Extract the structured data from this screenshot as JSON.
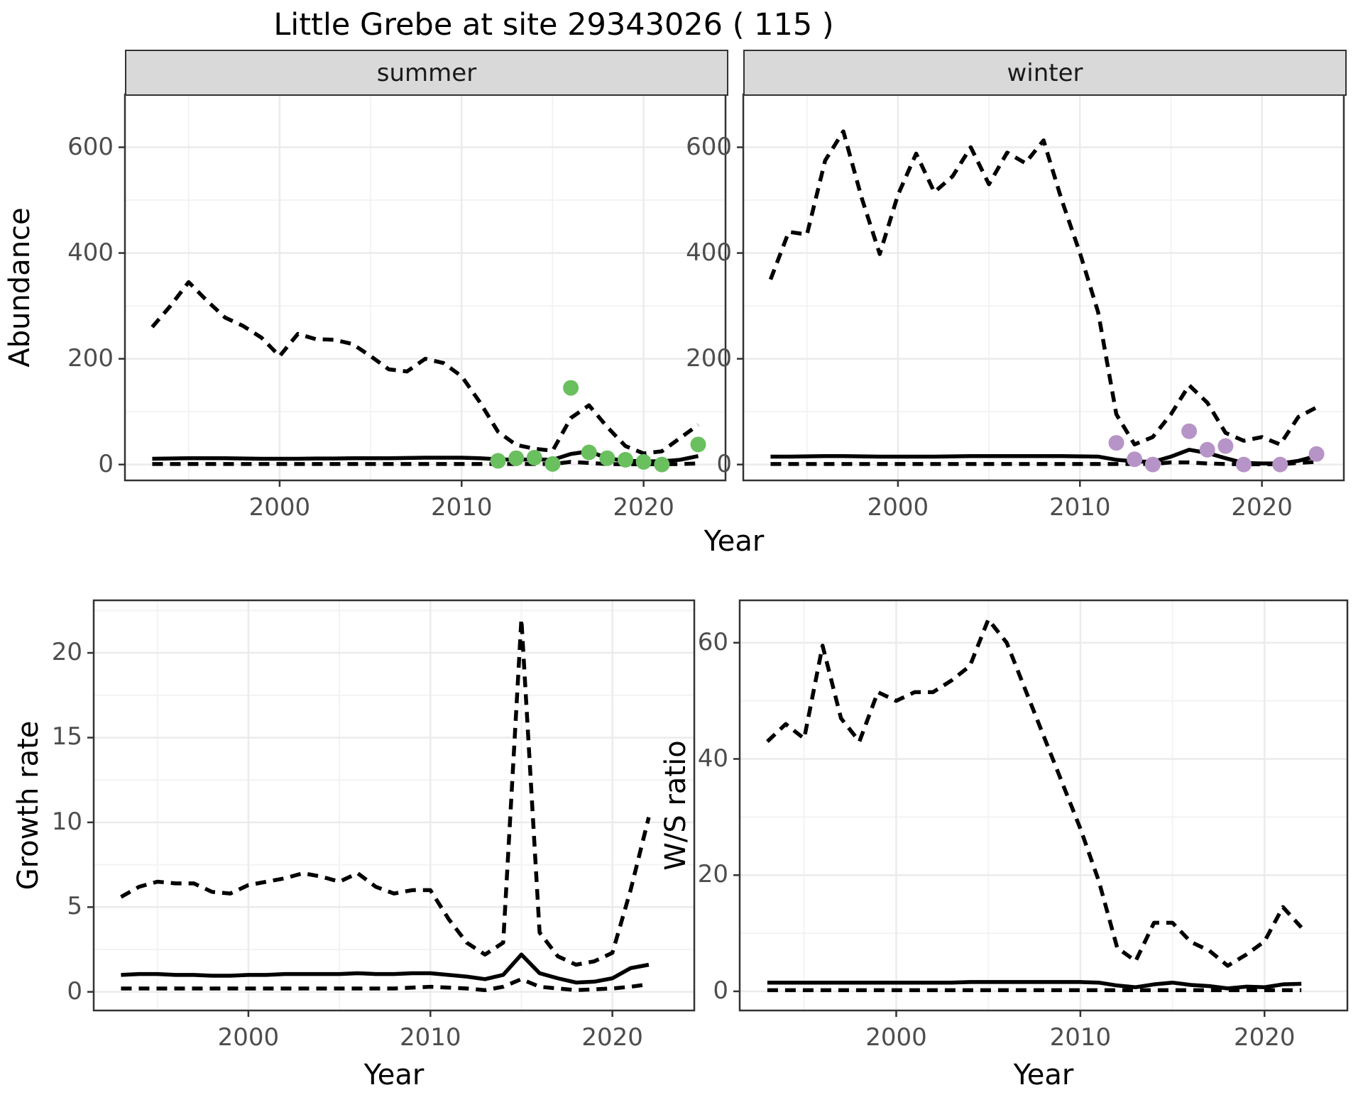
{
  "title": "Little Grebe at site 29343026 ( 115 )",
  "colors": {
    "summer_dot": "#6abf5f",
    "winter_dot": "#b794c7",
    "line": "#000000",
    "grid_major": "#ebebeb",
    "grid_minor": "#f3f3f3",
    "strip_bg": "#d9d9d9",
    "panel_border": "#333333",
    "tick_text": "#4d4d4d"
  },
  "top_axis_label": "Year",
  "chart_data": [
    {
      "type": "line",
      "title": "summer",
      "xlabel": "Year",
      "ylabel": "Abundance",
      "xlim": [
        1991.5,
        2024.5
      ],
      "ylim": [
        -30,
        700
      ],
      "xticks": [
        2000,
        2010,
        2020
      ],
      "xminor": [
        1995,
        2005,
        2015
      ],
      "yticks": [
        0,
        200,
        400,
        600
      ],
      "yminor": [
        100,
        300,
        500
      ],
      "grid": true,
      "legend": "none",
      "x": [
        1993,
        1994,
        1995,
        1996,
        1997,
        1998,
        1999,
        2000,
        2001,
        2002,
        2003,
        2004,
        2005,
        2006,
        2007,
        2008,
        2009,
        2010,
        2011,
        2012,
        2013,
        2014,
        2015,
        2016,
        2017,
        2018,
        2019,
        2020,
        2021,
        2022,
        2023
      ],
      "series": [
        {
          "name": "upper_95ci",
          "style": "dashed",
          "values": [
            260,
            300,
            345,
            310,
            278,
            262,
            240,
            205,
            247,
            237,
            236,
            228,
            205,
            180,
            176,
            200,
            192,
            167,
            118,
            62,
            37,
            30,
            26,
            88,
            112,
            71,
            35,
            21,
            25,
            50,
            75
          ]
        },
        {
          "name": "fitted_median",
          "style": "solid",
          "values": [
            11,
            11.5,
            12,
            12,
            12,
            11.5,
            11,
            11,
            11,
            11.5,
            11.5,
            12,
            12,
            12,
            12.5,
            13,
            13,
            13,
            12,
            10,
            9,
            10,
            9,
            20,
            25,
            12,
            7,
            6,
            6,
            9,
            16
          ]
        },
        {
          "name": "lower_95ci",
          "style": "dashed",
          "values": [
            1,
            1,
            1,
            1,
            1,
            1,
            1,
            1,
            1,
            1,
            1,
            1,
            1,
            1,
            1,
            1,
            1,
            1,
            1,
            1,
            1,
            1,
            1,
            5,
            3,
            1,
            0.5,
            0.5,
            0.5,
            1,
            2
          ]
        }
      ],
      "points": {
        "name": "observed_counts",
        "color": "#6abf5f",
        "values": [
          [
            2012,
            7
          ],
          [
            2013,
            12
          ],
          [
            2014,
            13
          ],
          [
            2015,
            1
          ],
          [
            2016,
            145
          ],
          [
            2017,
            23
          ],
          [
            2018,
            12
          ],
          [
            2019,
            9
          ],
          [
            2020,
            5
          ],
          [
            2021,
            0
          ],
          [
            2023,
            38
          ]
        ]
      }
    },
    {
      "type": "line",
      "title": "winter",
      "xlabel": "Year",
      "ylabel": "Abundance",
      "xlim": [
        1991.5,
        2024.5
      ],
      "ylim": [
        -30,
        700
      ],
      "xticks": [
        2000,
        2010,
        2020
      ],
      "xminor": [
        1995,
        2005,
        2015
      ],
      "yticks": [
        0,
        200,
        400,
        600
      ],
      "yminor": [
        100,
        300,
        500
      ],
      "grid": true,
      "legend": "none",
      "x": [
        1993,
        1994,
        1995,
        1996,
        1997,
        1998,
        1999,
        2000,
        2001,
        2002,
        2003,
        2004,
        2005,
        2006,
        2007,
        2008,
        2009,
        2010,
        2011,
        2012,
        2013,
        2014,
        2015,
        2016,
        2017,
        2018,
        2019,
        2020,
        2021,
        2022,
        2023
      ],
      "series": [
        {
          "name": "upper_95ci",
          "style": "dashed",
          "values": [
            350,
            440,
            435,
            575,
            630,
            505,
            398,
            510,
            588,
            515,
            545,
            600,
            530,
            590,
            570,
            613,
            500,
            400,
            288,
            95,
            38,
            52,
            95,
            150,
            117,
            60,
            45,
            52,
            38,
            90,
            108
          ]
        },
        {
          "name": "fitted_median",
          "style": "solid",
          "values": [
            15,
            15,
            15.5,
            16,
            16,
            15.5,
            15,
            15,
            15,
            15,
            15.5,
            16,
            16,
            16,
            16,
            16,
            16,
            15.5,
            15,
            9,
            6,
            5,
            15,
            28,
            22,
            12,
            3,
            2,
            2,
            7,
            16
          ]
        },
        {
          "name": "lower_95ci",
          "style": "dashed",
          "values": [
            1,
            1,
            1,
            1,
            1,
            1,
            1,
            1,
            1,
            1,
            1,
            1,
            1,
            1,
            1,
            1,
            1,
            1,
            1,
            1,
            1,
            1,
            4,
            4,
            2,
            1,
            0.5,
            0.5,
            0.5,
            3,
            5
          ]
        }
      ],
      "points": {
        "name": "observed_counts",
        "color": "#b794c7",
        "values": [
          [
            2012,
            41
          ],
          [
            2013,
            10
          ],
          [
            2014,
            0
          ],
          [
            2016,
            63
          ],
          [
            2017,
            28
          ],
          [
            2018,
            35
          ],
          [
            2019,
            0
          ],
          [
            2021,
            0
          ],
          [
            2023,
            20
          ]
        ]
      }
    },
    {
      "type": "line",
      "title": "Growth rate",
      "xlabel": "Year",
      "ylabel": "Growth rate",
      "xlim": [
        1991.5,
        2024.5
      ],
      "ylim": [
        -1.1,
        23.1
      ],
      "xticks": [
        2000,
        2010,
        2020
      ],
      "xminor": [
        1995,
        2005,
        2015
      ],
      "yticks": [
        0,
        5,
        10,
        15,
        20
      ],
      "yminor": [
        2.5,
        7.5,
        12.5,
        17.5,
        22.5
      ],
      "grid": true,
      "legend": "none",
      "x": [
        1993,
        1994,
        1995,
        1996,
        1997,
        1998,
        1999,
        2000,
        2001,
        2002,
        2003,
        2004,
        2005,
        2006,
        2007,
        2008,
        2009,
        2010,
        2011,
        2012,
        2013,
        2014,
        2015,
        2016,
        2017,
        2018,
        2019,
        2020,
        2021,
        2022
      ],
      "series": [
        {
          "name": "upper_95ci",
          "style": "dashed",
          "values": [
            5.6,
            6.2,
            6.5,
            6.4,
            6.4,
            5.9,
            5.8,
            6.3,
            6.5,
            6.7,
            7.0,
            6.8,
            6.5,
            7.0,
            6.2,
            5.8,
            6.0,
            6.0,
            4.3,
            2.9,
            2.2,
            2.9,
            22.0,
            3.5,
            2.1,
            1.6,
            1.8,
            2.3,
            6.0,
            10.3
          ]
        },
        {
          "name": "fitted_median",
          "style": "solid",
          "values": [
            1.0,
            1.05,
            1.05,
            1.0,
            1.0,
            0.95,
            0.95,
            1.0,
            1.0,
            1.05,
            1.05,
            1.05,
            1.05,
            1.1,
            1.05,
            1.05,
            1.1,
            1.1,
            1.0,
            0.9,
            0.75,
            1.0,
            2.2,
            1.1,
            0.8,
            0.55,
            0.6,
            0.8,
            1.4,
            1.6
          ]
        },
        {
          "name": "lower_95ci",
          "style": "dashed",
          "values": [
            0.2,
            0.2,
            0.2,
            0.2,
            0.2,
            0.2,
            0.2,
            0.2,
            0.2,
            0.2,
            0.2,
            0.2,
            0.2,
            0.2,
            0.2,
            0.2,
            0.25,
            0.3,
            0.25,
            0.2,
            0.1,
            0.3,
            0.75,
            0.3,
            0.2,
            0.1,
            0.15,
            0.2,
            0.3,
            0.45
          ]
        }
      ]
    },
    {
      "type": "line",
      "title": "W/S ratio",
      "xlabel": "Year",
      "ylabel": "W/S ratio",
      "xlim": [
        1991.5,
        2024.5
      ],
      "ylim": [
        -3.3,
        67.3
      ],
      "xticks": [
        2000,
        2010,
        2020
      ],
      "xminor": [
        1995,
        2005,
        2015
      ],
      "yticks": [
        0,
        20,
        40,
        60
      ],
      "yminor": [
        10,
        30,
        50
      ],
      "grid": true,
      "legend": "none",
      "x": [
        1993,
        1994,
        1995,
        1996,
        1997,
        1998,
        1999,
        2000,
        2001,
        2002,
        2003,
        2004,
        2005,
        2006,
        2007,
        2008,
        2009,
        2010,
        2011,
        2012,
        2013,
        2014,
        2015,
        2016,
        2017,
        2018,
        2019,
        2020,
        2021,
        2022
      ],
      "series": [
        {
          "name": "upper_95ci",
          "style": "dashed",
          "values": [
            43,
            46,
            43.5,
            59.5,
            47,
            43,
            51.5,
            50,
            51.5,
            51.5,
            53.5,
            56,
            64,
            60,
            52,
            44,
            36,
            28,
            19,
            7.5,
            5.2,
            11.8,
            11.8,
            8.5,
            7,
            4.4,
            6.3,
            8.6,
            14.5,
            11
          ]
        },
        {
          "name": "fitted_median",
          "style": "solid",
          "values": [
            1.5,
            1.5,
            1.5,
            1.5,
            1.5,
            1.5,
            1.5,
            1.5,
            1.5,
            1.5,
            1.5,
            1.6,
            1.6,
            1.6,
            1.6,
            1.6,
            1.6,
            1.6,
            1.5,
            1.0,
            0.7,
            1.2,
            1.5,
            1.1,
            0.9,
            0.5,
            0.8,
            0.7,
            1.2,
            1.3
          ]
        },
        {
          "name": "lower_95ci",
          "style": "dashed",
          "values": [
            0.2,
            0.2,
            0.2,
            0.2,
            0.2,
            0.2,
            0.2,
            0.2,
            0.2,
            0.2,
            0.2,
            0.2,
            0.2,
            0.2,
            0.2,
            0.2,
            0.2,
            0.2,
            0.2,
            0.2,
            0.2,
            0.2,
            0.2,
            0.2,
            0.2,
            0.2,
            0.2,
            0.2,
            0.2,
            0.2
          ]
        }
      ]
    }
  ]
}
